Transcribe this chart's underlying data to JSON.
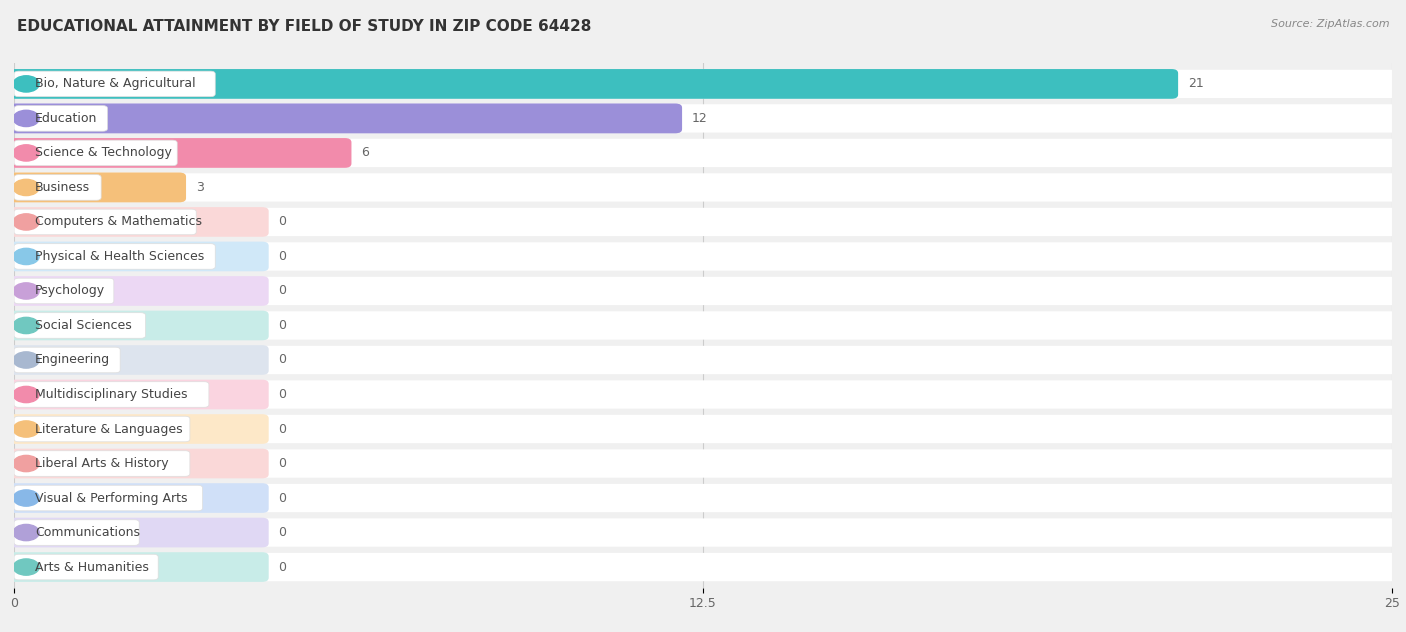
{
  "title": "EDUCATIONAL ATTAINMENT BY FIELD OF STUDY IN ZIP CODE 64428",
  "source": "Source: ZipAtlas.com",
  "categories": [
    "Bio, Nature & Agricultural",
    "Education",
    "Science & Technology",
    "Business",
    "Computers & Mathematics",
    "Physical & Health Sciences",
    "Psychology",
    "Social Sciences",
    "Engineering",
    "Multidisciplinary Studies",
    "Literature & Languages",
    "Liberal Arts & History",
    "Visual & Performing Arts",
    "Communications",
    "Arts & Humanities"
  ],
  "values": [
    21,
    12,
    6,
    3,
    0,
    0,
    0,
    0,
    0,
    0,
    0,
    0,
    0,
    0,
    0
  ],
  "bar_colors": [
    "#3DBFBF",
    "#9B8FD9",
    "#F28BAB",
    "#F5C07A",
    "#F0A0A0",
    "#88C8E8",
    "#C8A0D8",
    "#70C8C0",
    "#A8B8D0",
    "#F28BAB",
    "#F5C07A",
    "#F0A0A0",
    "#88B8E8",
    "#B0A0D8",
    "#70C8C0"
  ],
  "bg_colors": [
    "#C8ECEC",
    "#D8D0F0",
    "#FAD4E0",
    "#FDE8C8",
    "#FAD8D8",
    "#D0E8F8",
    "#ECD8F4",
    "#C8ECE8",
    "#DDE4EE",
    "#FAD4E0",
    "#FDE8C8",
    "#FAD8D8",
    "#D0E0F8",
    "#E0D8F4",
    "#C8ECE8"
  ],
  "xlim": [
    0,
    25
  ],
  "xticks": [
    0,
    12.5,
    25
  ],
  "background_color": "#f0f0f0",
  "row_bg_color": "#f8f8f8",
  "title_fontsize": 11,
  "label_fontsize": 9,
  "value_fontsize": 9
}
